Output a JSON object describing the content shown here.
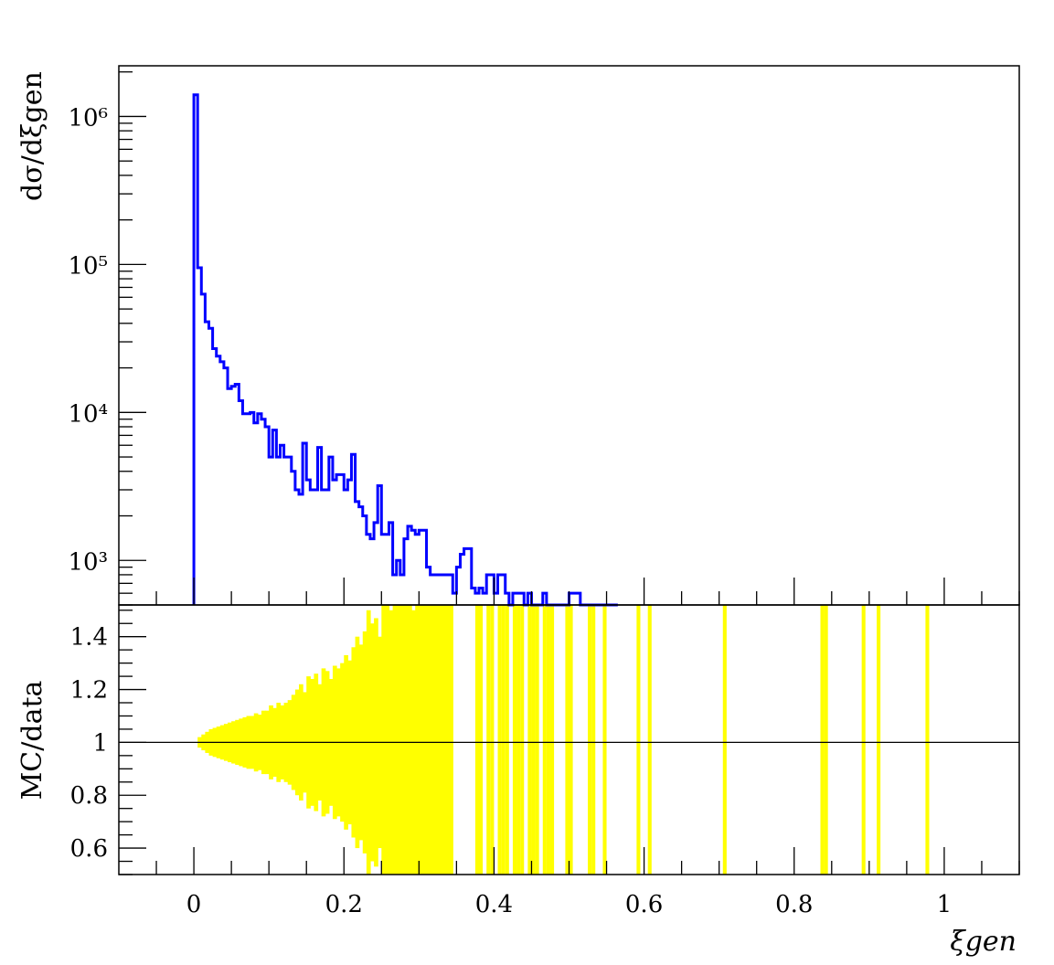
{
  "chart_data": [
    {
      "type": "line",
      "panel": "main",
      "ylabel": "dσ/dξgen",
      "yscale": "log",
      "xlim": [
        -0.1,
        1.1
      ],
      "ylim": [
        500,
        2200000
      ],
      "ytick_values": [
        1000,
        10000,
        100000,
        1000000
      ],
      "ytick_labels": [
        "10³",
        "10⁴",
        "10⁵",
        "10⁶"
      ],
      "line_color": "#0000ff",
      "bin_width": 0.005,
      "bin_start": 0.0,
      "histogram_values": [
        1400000,
        95000,
        63000,
        41000,
        37000,
        27000,
        24000,
        22000,
        20000,
        14500,
        15000,
        15500,
        12000,
        9800,
        9800,
        10000,
        8500,
        9800,
        9000,
        8000,
        5000,
        7600,
        5000,
        6000,
        5000,
        5000,
        4000,
        3000,
        2800,
        6200,
        3500,
        3000,
        3000,
        5800,
        3000,
        3000,
        5000,
        3500,
        3800,
        3800,
        3000,
        3500,
        5200,
        2500,
        2300,
        2000,
        1500,
        1400,
        1800,
        3200,
        1500,
        1500,
        1800,
        800,
        1000,
        800,
        1400,
        1700,
        1600,
        1500,
        1600,
        1600,
        900,
        800,
        800,
        800,
        800,
        800,
        800,
        600,
        900,
        1100,
        1200,
        1200,
        650,
        600,
        650,
        600,
        800,
        800,
        600,
        800,
        800,
        600,
        500,
        600,
        600,
        600,
        500,
        600,
        500,
        500,
        500,
        600,
        500,
        500,
        500,
        500,
        500,
        500,
        600,
        600,
        600,
        500,
        500,
        500,
        500,
        500,
        500,
        500,
        500,
        500,
        500
      ]
    },
    {
      "type": "bar",
      "panel": "ratio",
      "ylabel": "MC/data",
      "xlabel": "ξgen",
      "xlim": [
        -0.1,
        1.1
      ],
      "ylim": [
        0.5,
        1.52
      ],
      "xtick_values": [
        0,
        0.2,
        0.4,
        0.6,
        0.8,
        1
      ],
      "xtick_labels": [
        "0",
        "0.2",
        "0.4",
        "0.6",
        "0.8",
        "1"
      ],
      "ytick_values": [
        0.6,
        0.8,
        1.0,
        1.2,
        1.4
      ],
      "ytick_labels": [
        "0.6",
        "0.8",
        "1",
        "1.2",
        "1.4"
      ],
      "reference_line": 1.0,
      "band_color": "#ffff00",
      "bin_width": 0.005,
      "bin_start": 0.0,
      "band_halfwidth": [
        0.0,
        0.02,
        0.03,
        0.04,
        0.05,
        0.055,
        0.06,
        0.065,
        0.07,
        0.075,
        0.08,
        0.085,
        0.09,
        0.095,
        0.1,
        0.1,
        0.11,
        0.105,
        0.12,
        0.12,
        0.14,
        0.13,
        0.15,
        0.14,
        0.15,
        0.16,
        0.18,
        0.2,
        0.22,
        0.19,
        0.25,
        0.24,
        0.26,
        0.22,
        0.28,
        0.27,
        0.24,
        0.29,
        0.28,
        0.3,
        0.33,
        0.31,
        0.36,
        0.4,
        0.37,
        0.42,
        0.5,
        0.45,
        0.47,
        0.4,
        0.52,
        0.55,
        0.5,
        0.6,
        0.6,
        0.6,
        0.6,
        0.55,
        0.5,
        0.58,
        0.6,
        0.6,
        0.6,
        0.6,
        0.6,
        0.6,
        0.6,
        0.6,
        0.6
      ],
      "isolated_bins": [
        0.375,
        0.38,
        0.39,
        0.395,
        0.405,
        0.41,
        0.415,
        0.425,
        0.43,
        0.435,
        0.445,
        0.45,
        0.455,
        0.465,
        0.47,
        0.475,
        0.495,
        0.5,
        0.525,
        0.53,
        0.545,
        0.59,
        0.605,
        0.705,
        0.835,
        0.84,
        0.89,
        0.91,
        0.975
      ]
    }
  ]
}
